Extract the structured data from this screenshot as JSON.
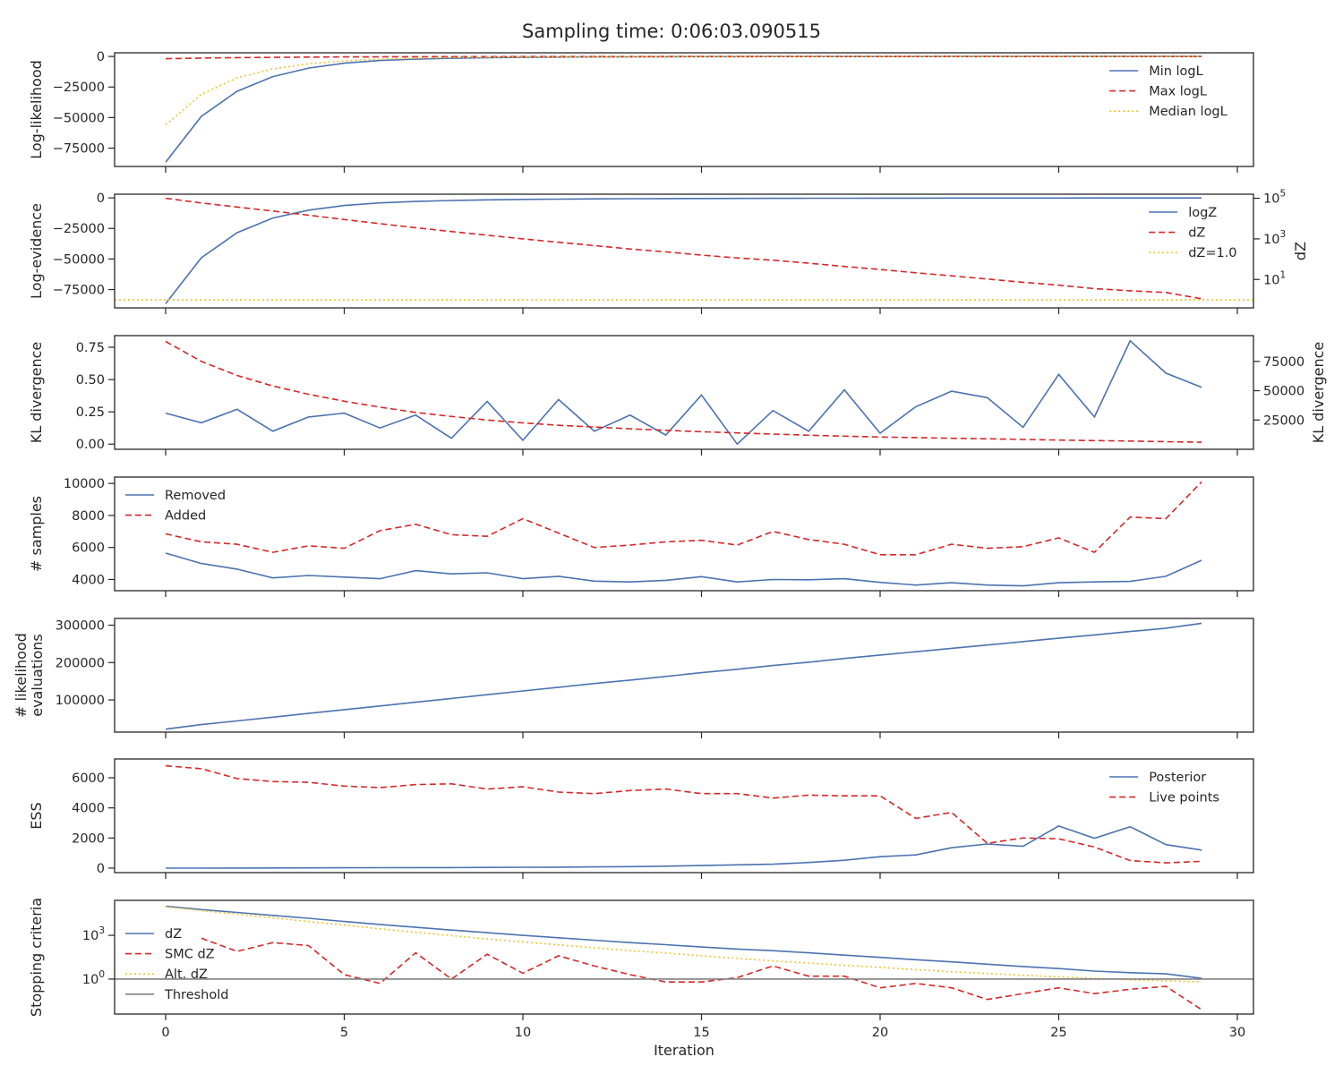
{
  "title": "Sampling time: 0:06:03.090515",
  "xlabel": "Iteration",
  "x_ticks": [
    0,
    5,
    10,
    15,
    20,
    25,
    30
  ],
  "colors": {
    "blue": "#4c72b0",
    "red": "#d62728",
    "yellow": "#f2c12e",
    "gray": "#808080",
    "axis": "#262626"
  },
  "chart_data": [
    {
      "type": "line",
      "ylabel": "Log-likelihood",
      "yticks": [
        0,
        -25000,
        -50000,
        -75000
      ],
      "ylim": [
        -90000,
        3000
      ],
      "legend": "upper right",
      "series": [
        {
          "name": "Min logL",
          "color": "blue",
          "dash": "solid",
          "values": [
            -86500,
            -49000,
            -28500,
            -16500,
            -9500,
            -5500,
            -3300,
            -2200,
            -1500,
            -1000,
            -700,
            -500,
            -400,
            -300,
            -230,
            -180,
            -140,
            -110,
            -90,
            -70,
            -55,
            -45,
            -35,
            -28,
            -22,
            -17,
            -13,
            -10,
            -8,
            -6
          ]
        },
        {
          "name": "Max logL",
          "color": "red",
          "dash": "dashed",
          "values": [
            -1800,
            -1300,
            -950,
            -700,
            -500,
            -380,
            -290,
            -220,
            -170,
            -130,
            -100,
            -80,
            -60,
            -48,
            -38,
            -30,
            -24,
            -19,
            -15,
            -12,
            -10,
            -8,
            -6,
            -5,
            -4,
            -3,
            -2.5,
            -2,
            -1.5,
            -1
          ]
        },
        {
          "name": "Median logL",
          "color": "yellow",
          "dash": "dotted",
          "values": [
            -56000,
            -31000,
            -17500,
            -10200,
            -6000,
            -3600,
            -2200,
            -1400,
            -900,
            -600,
            -400,
            -280,
            -200,
            -150,
            -110,
            -85,
            -65,
            -50,
            -40,
            -32,
            -25,
            -20,
            -16,
            -13,
            -10,
            -8,
            -6,
            -5,
            -4,
            -3
          ]
        }
      ]
    },
    {
      "type": "line",
      "ylabel": "Log-evidence",
      "ylabel_right": "dZ",
      "yticks": [
        0,
        -25000,
        -50000,
        -75000
      ],
      "ylim": [
        -90000,
        3000
      ],
      "yticks_right": [
        "10",
        "10",
        "10"
      ],
      "yticks_right_exp": [
        "5",
        "3",
        "1"
      ],
      "yscale_right": "log",
      "ylim_right_log10": [
        -0.4,
        5.2
      ],
      "legend": "upper right",
      "series": [
        {
          "name": "logZ",
          "color": "blue",
          "dash": "solid",
          "axis": "left",
          "values": [
            -86500,
            -49000,
            -28500,
            -16500,
            -10000,
            -6200,
            -4100,
            -2900,
            -2100,
            -1600,
            -1250,
            -1000,
            -820,
            -680,
            -570,
            -480,
            -410,
            -350,
            -300,
            -260,
            -225,
            -195,
            -170,
            -150,
            -130,
            -115,
            -100,
            -90,
            -80,
            -72
          ]
        },
        {
          "name": "dZ",
          "color": "red",
          "dash": "dashed",
          "axis": "right",
          "log10_values": [
            5.0,
            4.77,
            4.57,
            4.37,
            4.17,
            3.95,
            3.75,
            3.55,
            3.36,
            3.18,
            3.0,
            2.83,
            2.67,
            2.5,
            2.36,
            2.2,
            2.06,
            1.95,
            1.8,
            1.64,
            1.49,
            1.33,
            1.18,
            1.02,
            0.86,
            0.72,
            0.55,
            0.44,
            0.36,
            0.05
          ]
        },
        {
          "name": "dZ=1.0",
          "color": "yellow",
          "dash": "dotted",
          "axis": "right",
          "constant_log10": 0.0
        }
      ]
    },
    {
      "type": "line",
      "ylabel": "KL divergence",
      "ylabel_right": "KL divergence",
      "yticks": [
        "0.00",
        "0.25",
        "0.50",
        "0.75"
      ],
      "ylim": [
        -0.04,
        0.84
      ],
      "yticks_right": [
        25000,
        50000,
        75000
      ],
      "ylim_right": [
        0,
        97000
      ],
      "series": [
        {
          "color": "blue",
          "dash": "solid",
          "axis": "left",
          "values": [
            0.24,
            0.165,
            0.27,
            0.1,
            0.21,
            0.24,
            0.125,
            0.225,
            0.045,
            0.33,
            0.03,
            0.345,
            0.1,
            0.225,
            0.07,
            0.38,
            0.0,
            0.26,
            0.1,
            0.42,
            0.085,
            0.29,
            0.41,
            0.36,
            0.13,
            0.54,
            0.21,
            0.8,
            0.55,
            0.44
          ]
        },
        {
          "color": "red",
          "dash": "dashed",
          "axis": "right",
          "values": [
            92000,
            75000,
            63000,
            54000,
            47000,
            41000,
            36000,
            31500,
            28000,
            25000,
            22500,
            20500,
            19000,
            17500,
            16200,
            15000,
            14000,
            13000,
            12000,
            11200,
            10500,
            10000,
            9400,
            8900,
            8400,
            7900,
            7400,
            7000,
            6500,
            6000
          ]
        }
      ]
    },
    {
      "type": "line",
      "ylabel": "# samples",
      "yticks": [
        4000,
        6000,
        8000,
        10000
      ],
      "ylim": [
        3300,
        10400
      ],
      "legend": "upper left",
      "series": [
        {
          "name": "Removed",
          "color": "blue",
          "dash": "solid",
          "values": [
            5650,
            5000,
            4650,
            4100,
            4250,
            4150,
            4050,
            4550,
            4350,
            4420,
            4050,
            4200,
            3900,
            3850,
            3950,
            4180,
            3850,
            4000,
            3980,
            4050,
            3820,
            3650,
            3800,
            3650,
            3600,
            3800,
            3850,
            3880,
            4200,
            5200
          ]
        },
        {
          "name": "Added",
          "color": "red",
          "dash": "dashed",
          "values": [
            6850,
            6350,
            6200,
            5700,
            6100,
            5950,
            7050,
            7450,
            6800,
            6700,
            7800,
            6900,
            6000,
            6150,
            6350,
            6450,
            6150,
            7000,
            6500,
            6200,
            5550,
            5550,
            6200,
            5950,
            6050,
            6600,
            5700,
            7900,
            7800,
            10100
          ]
        }
      ]
    },
    {
      "type": "line",
      "ylabel_lines": [
        "# likelihood",
        "evaluations"
      ],
      "yticks": [
        100000,
        200000,
        300000
      ],
      "ylim": [
        14000,
        318000
      ],
      "series": [
        {
          "color": "blue",
          "dash": "solid",
          "values": [
            22000,
            34000,
            44000,
            54000,
            64000,
            74000,
            84000,
            94000,
            104000,
            114000,
            124000,
            134000,
            144000,
            153000,
            163000,
            173000,
            182000,
            192000,
            201000,
            211000,
            220000,
            229000,
            238000,
            247000,
            256000,
            265000,
            274000,
            283000,
            292000,
            305000
          ]
        }
      ]
    },
    {
      "type": "line",
      "ylabel": "ESS",
      "yticks": [
        0,
        2000,
        4000,
        6000
      ],
      "ylim": [
        -300,
        7250
      ],
      "legend": "upper right",
      "series": [
        {
          "name": "Posterior",
          "color": "blue",
          "dash": "solid",
          "values": [
            0,
            0,
            5,
            10,
            15,
            20,
            25,
            30,
            35,
            45,
            55,
            65,
            80,
            100,
            130,
            170,
            220,
            260,
            370,
            520,
            760,
            880,
            1350,
            1600,
            1450,
            2800,
            1980,
            2750,
            1560,
            1200
          ]
        },
        {
          "name": "Live points",
          "color": "red",
          "dash": "dashed",
          "values": [
            6800,
            6600,
            5950,
            5750,
            5700,
            5450,
            5350,
            5550,
            5600,
            5250,
            5400,
            5050,
            4950,
            5150,
            5250,
            4950,
            4950,
            4650,
            4850,
            4800,
            4800,
            3300,
            3700,
            1650,
            2000,
            1950,
            1400,
            500,
            350,
            450
          ]
        }
      ]
    },
    {
      "type": "line",
      "ylabel": "Stopping criteria",
      "yscale": "log",
      "yticks": [
        "10",
        "10"
      ],
      "yticks_exp": [
        "3",
        "0"
      ],
      "ylim_log10": [
        -2.4,
        5.4
      ],
      "legend": "center left",
      "series": [
        {
          "name": "dZ",
          "color": "blue",
          "dash": "solid",
          "log10_values": [
            5.0,
            4.77,
            4.57,
            4.37,
            4.17,
            3.95,
            3.75,
            3.55,
            3.36,
            3.18,
            3.0,
            2.83,
            2.67,
            2.5,
            2.36,
            2.2,
            2.06,
            1.95,
            1.8,
            1.64,
            1.49,
            1.33,
            1.18,
            1.02,
            0.86,
            0.72,
            0.55,
            0.44,
            0.36,
            0.05
          ]
        },
        {
          "name": "SMC dZ",
          "color": "red",
          "dash": "dashed",
          "log10_points": [
            [
              1,
              2.8
            ],
            [
              2,
              1.9
            ],
            [
              3,
              2.5
            ],
            [
              4,
              2.3
            ],
            [
              5,
              0.3
            ],
            [
              6,
              -0.3
            ],
            [
              7,
              1.8
            ],
            [
              8,
              0.0
            ],
            [
              9,
              1.7
            ],
            [
              10,
              0.4
            ],
            [
              11,
              1.6
            ],
            [
              12,
              0.9
            ],
            [
              13,
              0.3
            ],
            [
              14,
              -0.2
            ],
            [
              15,
              -0.2
            ],
            [
              16,
              0.1
            ],
            [
              17,
              0.9
            ],
            [
              18,
              0.2
            ],
            [
              19,
              0.2
            ],
            [
              20,
              -0.6
            ],
            [
              21,
              -0.3
            ],
            [
              22,
              -0.6
            ],
            [
              23,
              -1.4
            ],
            [
              24,
              -1.0
            ],
            [
              25,
              -0.6
            ],
            [
              26,
              -1.0
            ],
            [
              27,
              -0.7
            ],
            [
              28,
              -0.5
            ],
            [
              29,
              -2.1
            ]
          ]
        },
        {
          "name": "Alt. dZ",
          "color": "yellow",
          "dash": "dotted",
          "log10_values": [
            4.95,
            4.7,
            4.45,
            4.2,
            3.95,
            3.7,
            3.45,
            3.2,
            2.98,
            2.75,
            2.55,
            2.35,
            2.15,
            1.95,
            1.78,
            1.6,
            1.42,
            1.25,
            1.1,
            0.95,
            0.8,
            0.65,
            0.5,
            0.38,
            0.26,
            0.15,
            0.05,
            -0.05,
            -0.12,
            -0.2
          ]
        },
        {
          "name": "Threshold",
          "color": "gray",
          "dash": "solid",
          "constant_log10": 0.0
        }
      ]
    }
  ]
}
